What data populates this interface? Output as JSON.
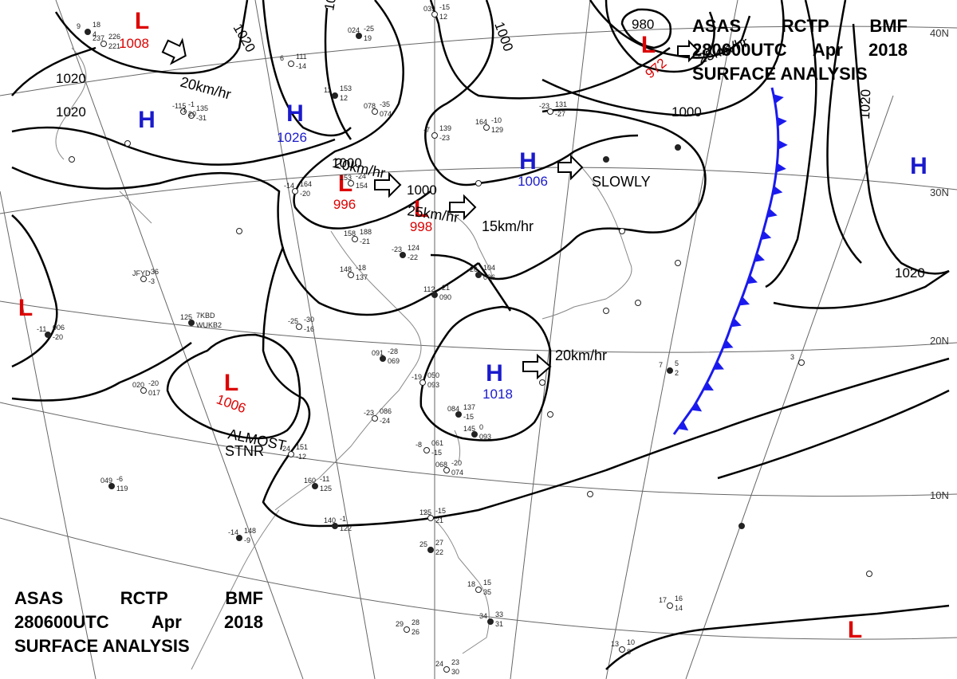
{
  "header": {
    "line1": [
      "ASAS",
      "RCTP",
      "BMF"
    ],
    "line2": [
      "280600UTC",
      "Apr",
      "2018"
    ],
    "line3": "SURFACE ANALYSIS"
  },
  "colors": {
    "high": "#1a1acc",
    "low": "#dd0000",
    "front": "#1a1aee",
    "isobar": "#000000",
    "grid": "#666666",
    "coast": "#777777"
  },
  "systems": [
    {
      "kind": "H",
      "pressure": "1026",
      "motion": ""
    },
    {
      "kind": "H",
      "pressure": "1006",
      "motion": "SLOWLY"
    },
    {
      "kind": "H",
      "pressure": "1018",
      "motion": "20km/hr"
    },
    {
      "kind": "H",
      "pressure": "",
      "motion": ""
    },
    {
      "kind": "H",
      "pressure": "",
      "motion": ""
    },
    {
      "kind": "L",
      "pressure": "1008",
      "motion": "20km/hr"
    },
    {
      "kind": "L",
      "pressure": "996",
      "motion": "20km/hr"
    },
    {
      "kind": "L",
      "pressure": "998",
      "motion": "25km/hr"
    },
    {
      "kind": "L",
      "pressure": "972",
      "motion": "25km/hr"
    },
    {
      "kind": "L",
      "pressure": "1006",
      "motion": "ALMOST STNR"
    },
    {
      "kind": "L",
      "pressure": "",
      "motion": ""
    },
    {
      "kind": "L",
      "pressure": "",
      "motion": ""
    }
  ],
  "extra_labels": {
    "speed_15": "15km/hr"
  },
  "isobar_labels": [
    "1020",
    "1020",
    "1020",
    "1020",
    "1000",
    "1000",
    "980",
    "1000",
    "1020",
    "1020",
    "1000"
  ],
  "latitude_labels": [
    "40N",
    "30N",
    "20N",
    "10N"
  ],
  "stations": [
    "9",
    "18",
    "4",
    "237",
    "226",
    "221",
    "-115",
    "-1",
    "20",
    "6",
    "111",
    "-14",
    "11",
    "153",
    "12",
    "024",
    "-25",
    "19",
    "039",
    "-15",
    "12",
    "-1",
    "135",
    "-31",
    "078",
    "-35",
    "074",
    "-7",
    "139",
    "-23",
    "164",
    "-10",
    "129",
    "-23",
    "131",
    "-27",
    "153",
    "-24",
    "154",
    "-14",
    "164",
    "-20",
    "158",
    "188",
    "-21",
    "148",
    "-18",
    "137",
    "-23",
    "124",
    "-22",
    "112",
    "-21",
    "090",
    "-26",
    "104",
    "096",
    "-25",
    "-30",
    "-16",
    "091",
    "-28",
    "069",
    "-19",
    "050",
    "093",
    "-23",
    "086",
    "-24",
    "084",
    "137",
    "-15",
    "145",
    "0",
    "093",
    "-8",
    "061",
    "-15",
    "068",
    "-20",
    "074",
    "-24",
    "151",
    "-12",
    "160",
    "-11",
    "125",
    "140",
    "-1",
    "122",
    "-14",
    "148",
    "-9",
    "049",
    "-6",
    "119",
    "020",
    "-20",
    "017",
    "-11",
    "006",
    "-20",
    "125",
    "7KBD",
    "WUKB2",
    "JFYD",
    "-36",
    "-3",
    "125",
    "-15",
    "21",
    "25",
    "27",
    "22",
    "18",
    "15",
    "35",
    "34",
    "33",
    "31",
    "29",
    "28",
    "26",
    "24",
    "23",
    "30",
    "17",
    "16",
    "14",
    "13",
    "10",
    "8",
    "7",
    "5",
    "2",
    "3"
  ]
}
